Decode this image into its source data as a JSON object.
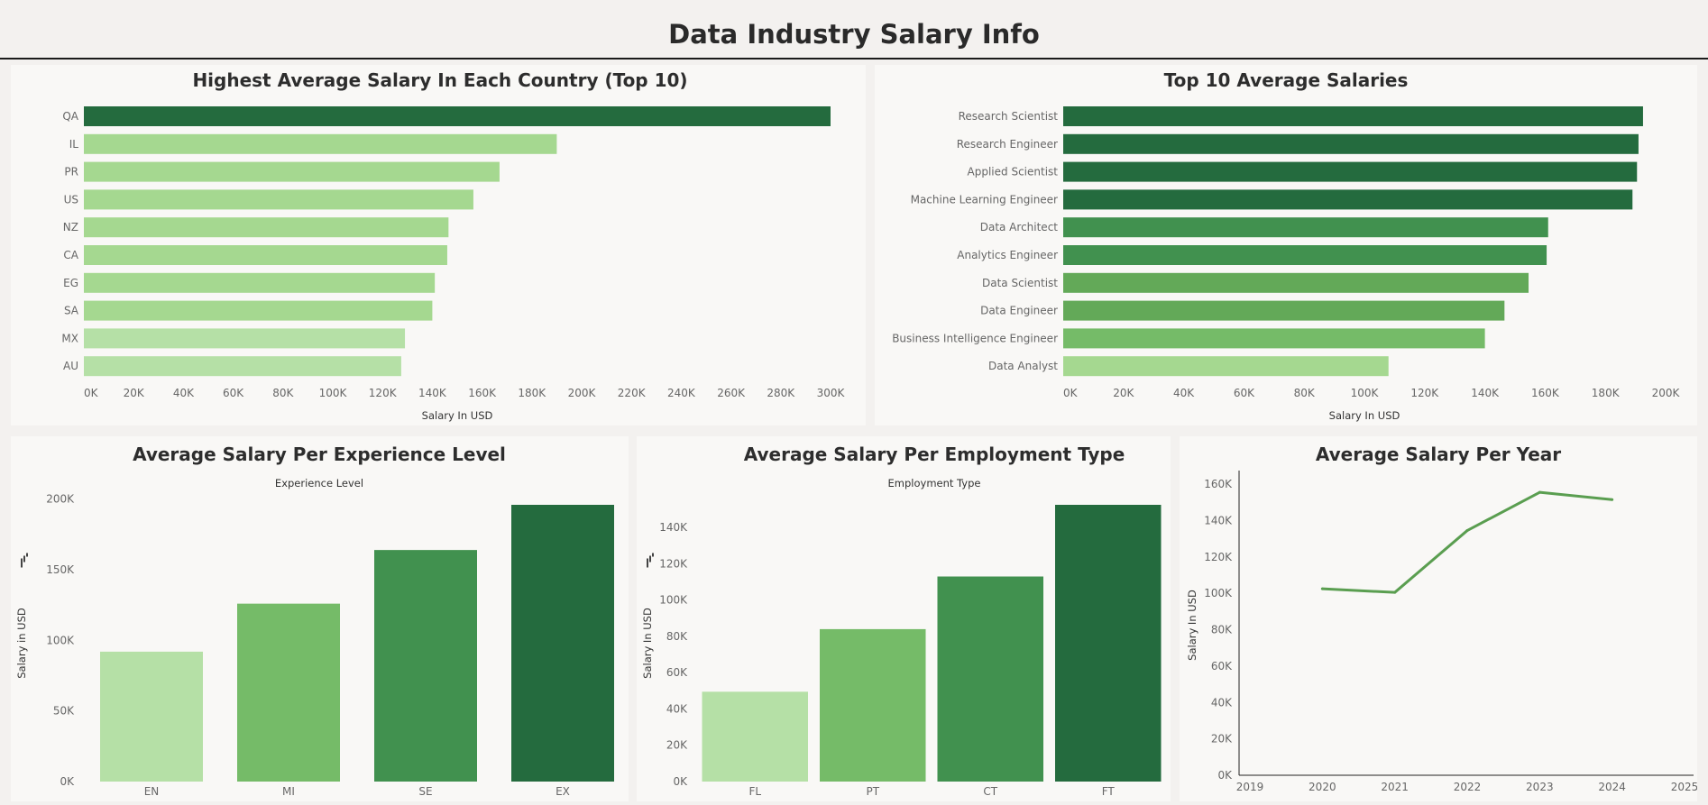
{
  "dashboard": {
    "title": "Data Industry Salary Info"
  },
  "colors": {
    "dark": "#246b3e",
    "c2": "#41914f",
    "c3": "#63a958",
    "c4": "#75bb68",
    "c5": "#87c878",
    "c6": "#a5d890",
    "c7": "#b5e0a6",
    "line": "#5a9e50",
    "axis": "#222222"
  },
  "icons": {
    "axis_sort": "sort-bars-icon"
  },
  "chart_data": [
    {
      "type": "bar",
      "orientation": "horizontal",
      "title": "Highest Average Salary In Each Country (Top 10)",
      "xlabel": "Salary In USD",
      "ylabel": "",
      "categories": [
        "QA",
        "IL",
        "PR",
        "US",
        "NZ",
        "CA",
        "EG",
        "SA",
        "MX",
        "AU"
      ],
      "values": [
        300000,
        190000,
        167000,
        156500,
        146500,
        146000,
        141000,
        140000,
        129000,
        127500
      ],
      "xlim": [
        0,
        300000
      ],
      "x_ticks": [
        "0K",
        "20K",
        "40K",
        "60K",
        "80K",
        "100K",
        "120K",
        "140K",
        "160K",
        "180K",
        "200K",
        "220K",
        "240K",
        "260K",
        "280K",
        "300K"
      ],
      "grid": false
    },
    {
      "type": "bar",
      "orientation": "horizontal",
      "title": "Top 10 Average Salaries",
      "xlabel": "Salary In USD",
      "ylabel": "",
      "categories": [
        "Research Scientist",
        "Research Engineer",
        "Applied Scientist",
        "Machine Learning Engineer",
        "Data Architect",
        "Analytics Engineer",
        "Data Scientist",
        "Data Engineer",
        "Business Intelligence Engineer",
        "Data Analyst"
      ],
      "values": [
        192500,
        191000,
        190500,
        189000,
        161000,
        160500,
        154500,
        146500,
        140000,
        108000
      ],
      "xlim": [
        0,
        200000
      ],
      "x_ticks": [
        "0K",
        "20K",
        "40K",
        "60K",
        "80K",
        "100K",
        "120K",
        "140K",
        "160K",
        "180K",
        "200K"
      ],
      "grid": false
    },
    {
      "type": "bar",
      "title": "Average Salary Per Experience Level",
      "xlabel": "Experience Level",
      "ylabel": "Salary in USD",
      "categories": [
        "EN",
        "MI",
        "SE",
        "EX"
      ],
      "values": [
        92000,
        126000,
        164000,
        196000
      ],
      "ylim": [
        0,
        196000
      ],
      "y_ticks": [
        0,
        50000,
        100000,
        150000,
        200000
      ],
      "y_tick_labels": [
        "0K",
        "50K",
        "100K",
        "150K",
        "200K"
      ],
      "grid": false
    },
    {
      "type": "bar",
      "title": "Average Salary Per Employment Type",
      "xlabel": "Employment Type",
      "ylabel": "Salary In USD",
      "categories": [
        "FL",
        "PT",
        "CT",
        "FT"
      ],
      "values": [
        49500,
        84000,
        113000,
        152500
      ],
      "ylim": [
        0,
        152500
      ],
      "y_ticks": [
        0,
        20000,
        40000,
        60000,
        80000,
        100000,
        120000,
        140000
      ],
      "y_tick_labels": [
        "0K",
        "20K",
        "40K",
        "60K",
        "80K",
        "100K",
        "120K",
        "140K"
      ],
      "grid": false
    },
    {
      "type": "line",
      "title": "Average Salary Per Year",
      "xlabel": "",
      "ylabel": "Salary In USD",
      "x": [
        2020,
        2021,
        2022,
        2023,
        2024
      ],
      "values": [
        102500,
        100500,
        134500,
        155500,
        151500
      ],
      "xlim": [
        2019,
        2025
      ],
      "ylim": [
        0,
        165000
      ],
      "x_tick_labels": [
        "2019",
        "2020",
        "2021",
        "2022",
        "2023",
        "2024",
        "2025"
      ],
      "y_ticks": [
        0,
        20000,
        40000,
        60000,
        80000,
        100000,
        120000,
        140000,
        160000
      ],
      "y_tick_labels": [
        "0K",
        "20K",
        "40K",
        "60K",
        "80K",
        "100K",
        "120K",
        "140K",
        "160K"
      ],
      "grid": false
    }
  ]
}
